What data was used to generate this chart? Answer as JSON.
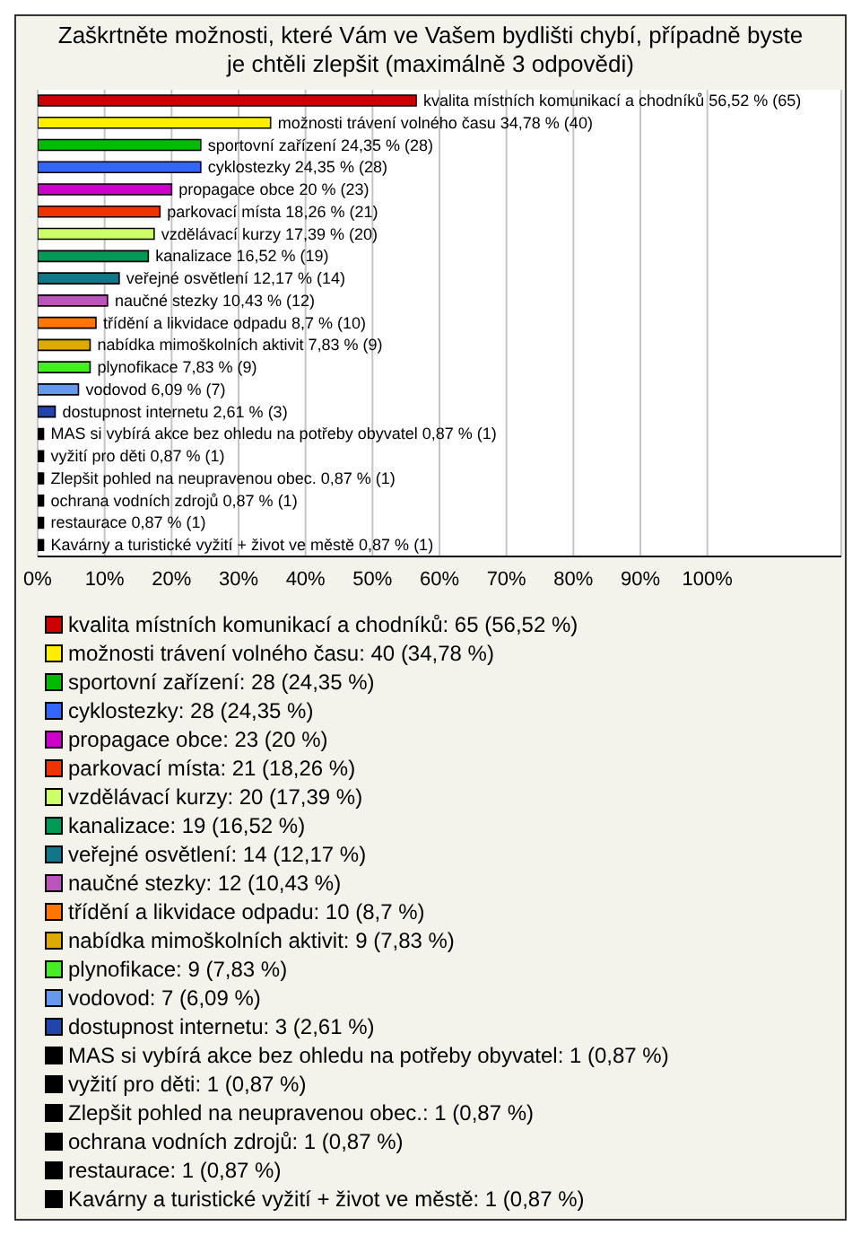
{
  "chart_data": {
    "type": "bar",
    "orientation": "horizontal",
    "stacked": true,
    "title": "Zaškrtněte možnosti, které Vám ve Vašem bydlišti chybí, případně byste je chtěli zlepšit (maximálně 3 odpovědi)",
    "categories": [
      null,
      null,
      null,
      null,
      null,
      null,
      null,
      null,
      null,
      null,
      null,
      null,
      null,
      null,
      null,
      null,
      null,
      null,
      null,
      null,
      null
    ],
    "series": [
      {
        "name": "kvalita místních komunikací a chodníků: 65 (56,52 %)",
        "color": "#cc0000",
        "values": [
          56.52,
          null,
          null,
          null,
          null,
          null,
          null,
          null,
          null,
          null,
          null,
          null,
          null,
          null,
          null,
          null,
          null,
          null,
          null,
          null,
          null
        ],
        "value_labels": [
          "kvalita místních komunikací a chodníků 56,52 % (65)",
          null,
          null,
          null,
          null,
          null,
          null,
          null,
          null,
          null,
          null,
          null,
          null,
          null,
          null,
          null,
          null,
          null,
          null,
          null,
          null
        ]
      },
      {
        "name": "možnosti trávení volného času: 40 (34,78 %)",
        "color": "#ffee00",
        "values": [
          null,
          34.78,
          null,
          null,
          null,
          null,
          null,
          null,
          null,
          null,
          null,
          null,
          null,
          null,
          null,
          null,
          null,
          null,
          null,
          null,
          null
        ],
        "value_labels": [
          null,
          "možnosti trávení volného času 34,78 % (40)",
          null,
          null,
          null,
          null,
          null,
          null,
          null,
          null,
          null,
          null,
          null,
          null,
          null,
          null,
          null,
          null,
          null,
          null,
          null
        ]
      },
      {
        "name": "sportovní zařízení: 28 (24,35 %)",
        "color": "#00bb00",
        "values": [
          null,
          null,
          24.35,
          null,
          null,
          null,
          null,
          null,
          null,
          null,
          null,
          null,
          null,
          null,
          null,
          null,
          null,
          null,
          null,
          null,
          null
        ],
        "value_labels": [
          null,
          null,
          "sportovní zařízení 24,35 % (28)",
          null,
          null,
          null,
          null,
          null,
          null,
          null,
          null,
          null,
          null,
          null,
          null,
          null,
          null,
          null,
          null,
          null,
          null
        ]
      },
      {
        "name": "cyklostezky: 28 (24,35 %)",
        "color": "#3366ff",
        "values": [
          null,
          null,
          null,
          24.35,
          null,
          null,
          null,
          null,
          null,
          null,
          null,
          null,
          null,
          null,
          null,
          null,
          null,
          null,
          null,
          null,
          null
        ],
        "value_labels": [
          null,
          null,
          null,
          "cyklostezky 24,35 % (28)",
          null,
          null,
          null,
          null,
          null,
          null,
          null,
          null,
          null,
          null,
          null,
          null,
          null,
          null,
          null,
          null,
          null
        ]
      },
      {
        "name": "propagace obce: 23 (20 %)",
        "color": "#cc00cc",
        "values": [
          null,
          null,
          null,
          null,
          20,
          null,
          null,
          null,
          null,
          null,
          null,
          null,
          null,
          null,
          null,
          null,
          null,
          null,
          null,
          null,
          null
        ],
        "value_labels": [
          null,
          null,
          null,
          null,
          "propagace obce 20 % (23)",
          null,
          null,
          null,
          null,
          null,
          null,
          null,
          null,
          null,
          null,
          null,
          null,
          null,
          null,
          null,
          null
        ]
      },
      {
        "name": "parkovací místa: 21 (18,26 %)",
        "color": "#ee3300",
        "values": [
          null,
          null,
          null,
          null,
          null,
          18.26,
          null,
          null,
          null,
          null,
          null,
          null,
          null,
          null,
          null,
          null,
          null,
          null,
          null,
          null,
          null
        ],
        "value_labels": [
          null,
          null,
          null,
          null,
          null,
          "parkovací místa 18,26 % (21)",
          null,
          null,
          null,
          null,
          null,
          null,
          null,
          null,
          null,
          null,
          null,
          null,
          null,
          null,
          null
        ]
      },
      {
        "name": "vzdělávací kurzy: 20 (17,39 %)",
        "color": "#ccff66",
        "values": [
          null,
          null,
          null,
          null,
          null,
          null,
          17.39,
          null,
          null,
          null,
          null,
          null,
          null,
          null,
          null,
          null,
          null,
          null,
          null,
          null,
          null
        ],
        "value_labels": [
          null,
          null,
          null,
          null,
          null,
          null,
          "vzdělávací kurzy 17,39 % (20)",
          null,
          null,
          null,
          null,
          null,
          null,
          null,
          null,
          null,
          null,
          null,
          null,
          null,
          null
        ]
      },
      {
        "name": "kanalizace: 19 (16,52 %)",
        "color": "#009955",
        "values": [
          null,
          null,
          null,
          null,
          null,
          null,
          null,
          16.52,
          null,
          null,
          null,
          null,
          null,
          null,
          null,
          null,
          null,
          null,
          null,
          null,
          null
        ],
        "value_labels": [
          null,
          null,
          null,
          null,
          null,
          null,
          null,
          "kanalizace 16,52 % (19)",
          null,
          null,
          null,
          null,
          null,
          null,
          null,
          null,
          null,
          null,
          null,
          null,
          null
        ]
      },
      {
        "name": "veřejné osvětlení: 14 (12,17 %)",
        "color": "#117788",
        "values": [
          null,
          null,
          null,
          null,
          null,
          null,
          null,
          null,
          12.17,
          null,
          null,
          null,
          null,
          null,
          null,
          null,
          null,
          null,
          null,
          null,
          null
        ],
        "value_labels": [
          null,
          null,
          null,
          null,
          null,
          null,
          null,
          null,
          "veřejné osvětlení 12,17 % (14)",
          null,
          null,
          null,
          null,
          null,
          null,
          null,
          null,
          null,
          null,
          null,
          null
        ]
      },
      {
        "name": "naučné stezky: 12 (10,43 %)",
        "color": "#bb55bb",
        "values": [
          null,
          null,
          null,
          null,
          null,
          null,
          null,
          null,
          null,
          10.43,
          null,
          null,
          null,
          null,
          null,
          null,
          null,
          null,
          null,
          null,
          null
        ],
        "value_labels": [
          null,
          null,
          null,
          null,
          null,
          null,
          null,
          null,
          null,
          "naučné stezky 10,43 % (12)",
          null,
          null,
          null,
          null,
          null,
          null,
          null,
          null,
          null,
          null,
          null
        ]
      },
      {
        "name": "třídění a likvidace odpadu: 10 (8,7 %)",
        "color": "#ff7700",
        "values": [
          null,
          null,
          null,
          null,
          null,
          null,
          null,
          null,
          null,
          null,
          8.7,
          null,
          null,
          null,
          null,
          null,
          null,
          null,
          null,
          null,
          null
        ],
        "value_labels": [
          null,
          null,
          null,
          null,
          null,
          null,
          null,
          null,
          null,
          null,
          "třídění a likvidace odpadu 8,7 % (10)",
          null,
          null,
          null,
          null,
          null,
          null,
          null,
          null,
          null,
          null
        ]
      },
      {
        "name": "nabídka mimoškolních aktivit: 9 (7,83 %)",
        "color": "#ddaa00",
        "values": [
          null,
          null,
          null,
          null,
          null,
          null,
          null,
          null,
          null,
          null,
          null,
          7.83,
          null,
          null,
          null,
          null,
          null,
          null,
          null,
          null,
          null
        ],
        "value_labels": [
          null,
          null,
          null,
          null,
          null,
          null,
          null,
          null,
          null,
          null,
          null,
          "nabídka mimoškolních aktivit 7,83 % (9)",
          null,
          null,
          null,
          null,
          null,
          null,
          null,
          null,
          null
        ]
      },
      {
        "name": "plynofikace: 9 (7,83 %)",
        "color": "#44ee22",
        "values": [
          null,
          null,
          null,
          null,
          null,
          null,
          null,
          null,
          null,
          null,
          null,
          null,
          7.83,
          null,
          null,
          null,
          null,
          null,
          null,
          null,
          null
        ],
        "value_labels": [
          null,
          null,
          null,
          null,
          null,
          null,
          null,
          null,
          null,
          null,
          null,
          null,
          "plynofikace 7,83 % (9)",
          null,
          null,
          null,
          null,
          null,
          null,
          null,
          null
        ]
      },
      {
        "name": "vodovod: 7 (6,09 %)",
        "color": "#6699ee",
        "values": [
          null,
          null,
          null,
          null,
          null,
          null,
          null,
          null,
          null,
          null,
          null,
          null,
          null,
          6.09,
          null,
          null,
          null,
          null,
          null,
          null,
          null
        ],
        "value_labels": [
          null,
          null,
          null,
          null,
          null,
          null,
          null,
          null,
          null,
          null,
          null,
          null,
          null,
          "vodovod 6,09 % (7)",
          null,
          null,
          null,
          null,
          null,
          null,
          null
        ]
      },
      {
        "name": "dostupnost internetu: 3 (2,61 %)",
        "color": "#2244aa",
        "values": [
          null,
          null,
          null,
          null,
          null,
          null,
          null,
          null,
          null,
          null,
          null,
          null,
          null,
          null,
          2.61,
          null,
          null,
          null,
          null,
          null,
          null
        ],
        "value_labels": [
          null,
          null,
          null,
          null,
          null,
          null,
          null,
          null,
          null,
          null,
          null,
          null,
          null,
          null,
          "dostupnost internetu 2,61 % (3)",
          null,
          null,
          null,
          null,
          null,
          null
        ]
      },
      {
        "name": "MAS si vybírá akce bez ohledu na potřeby obyvatel: 1 (0,87 %)",
        "color": "#000000",
        "values": [
          null,
          null,
          null,
          null,
          null,
          null,
          null,
          null,
          null,
          null,
          null,
          null,
          null,
          null,
          null,
          0.87,
          null,
          null,
          null,
          null,
          null
        ],
        "value_labels": [
          null,
          null,
          null,
          null,
          null,
          null,
          null,
          null,
          null,
          null,
          null,
          null,
          null,
          null,
          null,
          "MAS si vybírá akce bez ohledu na potřeby obyvatel 0,87 % (1)",
          null,
          null,
          null,
          null,
          null
        ]
      },
      {
        "name": "vyžití pro děti: 1 (0,87 %)",
        "color": "#000000",
        "values": [
          null,
          null,
          null,
          null,
          null,
          null,
          null,
          null,
          null,
          null,
          null,
          null,
          null,
          null,
          null,
          null,
          0.87,
          null,
          null,
          null,
          null
        ],
        "value_labels": [
          null,
          null,
          null,
          null,
          null,
          null,
          null,
          null,
          null,
          null,
          null,
          null,
          null,
          null,
          null,
          null,
          "vyžití pro děti 0,87 % (1)",
          null,
          null,
          null,
          null
        ]
      },
      {
        "name": "Zlepšit pohled na neupravenou obec.: 1 (0,87 %)",
        "color": "#000000",
        "values": [
          null,
          null,
          null,
          null,
          null,
          null,
          null,
          null,
          null,
          null,
          null,
          null,
          null,
          null,
          null,
          null,
          null,
          0.87,
          null,
          null,
          null
        ],
        "value_labels": [
          null,
          null,
          null,
          null,
          null,
          null,
          null,
          null,
          null,
          null,
          null,
          null,
          null,
          null,
          null,
          null,
          null,
          "Zlepšit pohled na neupravenou obec. 0,87 % (1)",
          null,
          null,
          null
        ]
      },
      {
        "name": "ochrana vodních zdrojů: 1 (0,87 %)",
        "color": "#000000",
        "values": [
          null,
          null,
          null,
          null,
          null,
          null,
          null,
          null,
          null,
          null,
          null,
          null,
          null,
          null,
          null,
          null,
          null,
          null,
          0.87,
          null,
          null
        ],
        "value_labels": [
          null,
          null,
          null,
          null,
          null,
          null,
          null,
          null,
          null,
          null,
          null,
          null,
          null,
          null,
          null,
          null,
          null,
          null,
          "ochrana vodních zdrojů 0,87 % (1)",
          null,
          null
        ]
      },
      {
        "name": "restaurace: 1 (0,87 %)",
        "color": "#000000",
        "values": [
          null,
          null,
          null,
          null,
          null,
          null,
          null,
          null,
          null,
          null,
          null,
          null,
          null,
          null,
          null,
          null,
          null,
          null,
          null,
          0.87,
          null
        ],
        "value_labels": [
          null,
          null,
          null,
          null,
          null,
          null,
          null,
          null,
          null,
          null,
          null,
          null,
          null,
          null,
          null,
          null,
          null,
          null,
          null,
          "restaurace 0,87 % (1)",
          null
        ]
      },
      {
        "name": "Kavárny a turistické vyžití + život ve městě: 1 (0,87 %)",
        "color": "#000000",
        "values": [
          null,
          null,
          null,
          null,
          null,
          null,
          null,
          null,
          null,
          null,
          null,
          null,
          null,
          null,
          null,
          null,
          null,
          null,
          null,
          null,
          0.87
        ],
        "value_labels": [
          null,
          null,
          null,
          null,
          null,
          null,
          null,
          null,
          null,
          null,
          null,
          null,
          null,
          null,
          null,
          null,
          null,
          null,
          null,
          null,
          "Kavárny a turistické vyžití + život ve městě 0,87 % (1)"
        ]
      }
    ],
    "xlim": [
      0,
      120
    ],
    "xticks": [
      {
        "value": 0,
        "label": "0%"
      },
      {
        "value": 10,
        "label": "10%"
      },
      {
        "value": 20,
        "label": "20%"
      },
      {
        "value": 30,
        "label": "30%"
      },
      {
        "value": 40,
        "label": "40%"
      },
      {
        "value": 50,
        "label": "50%"
      },
      {
        "value": 60,
        "label": "60%"
      },
      {
        "value": 70,
        "label": "70%"
      },
      {
        "value": 80,
        "label": "80%"
      },
      {
        "value": 90,
        "label": "90%"
      },
      {
        "value": 100,
        "label": "100%"
      }
    ],
    "grid": "x",
    "legend": "bottom",
    "tick_labels": "x"
  }
}
